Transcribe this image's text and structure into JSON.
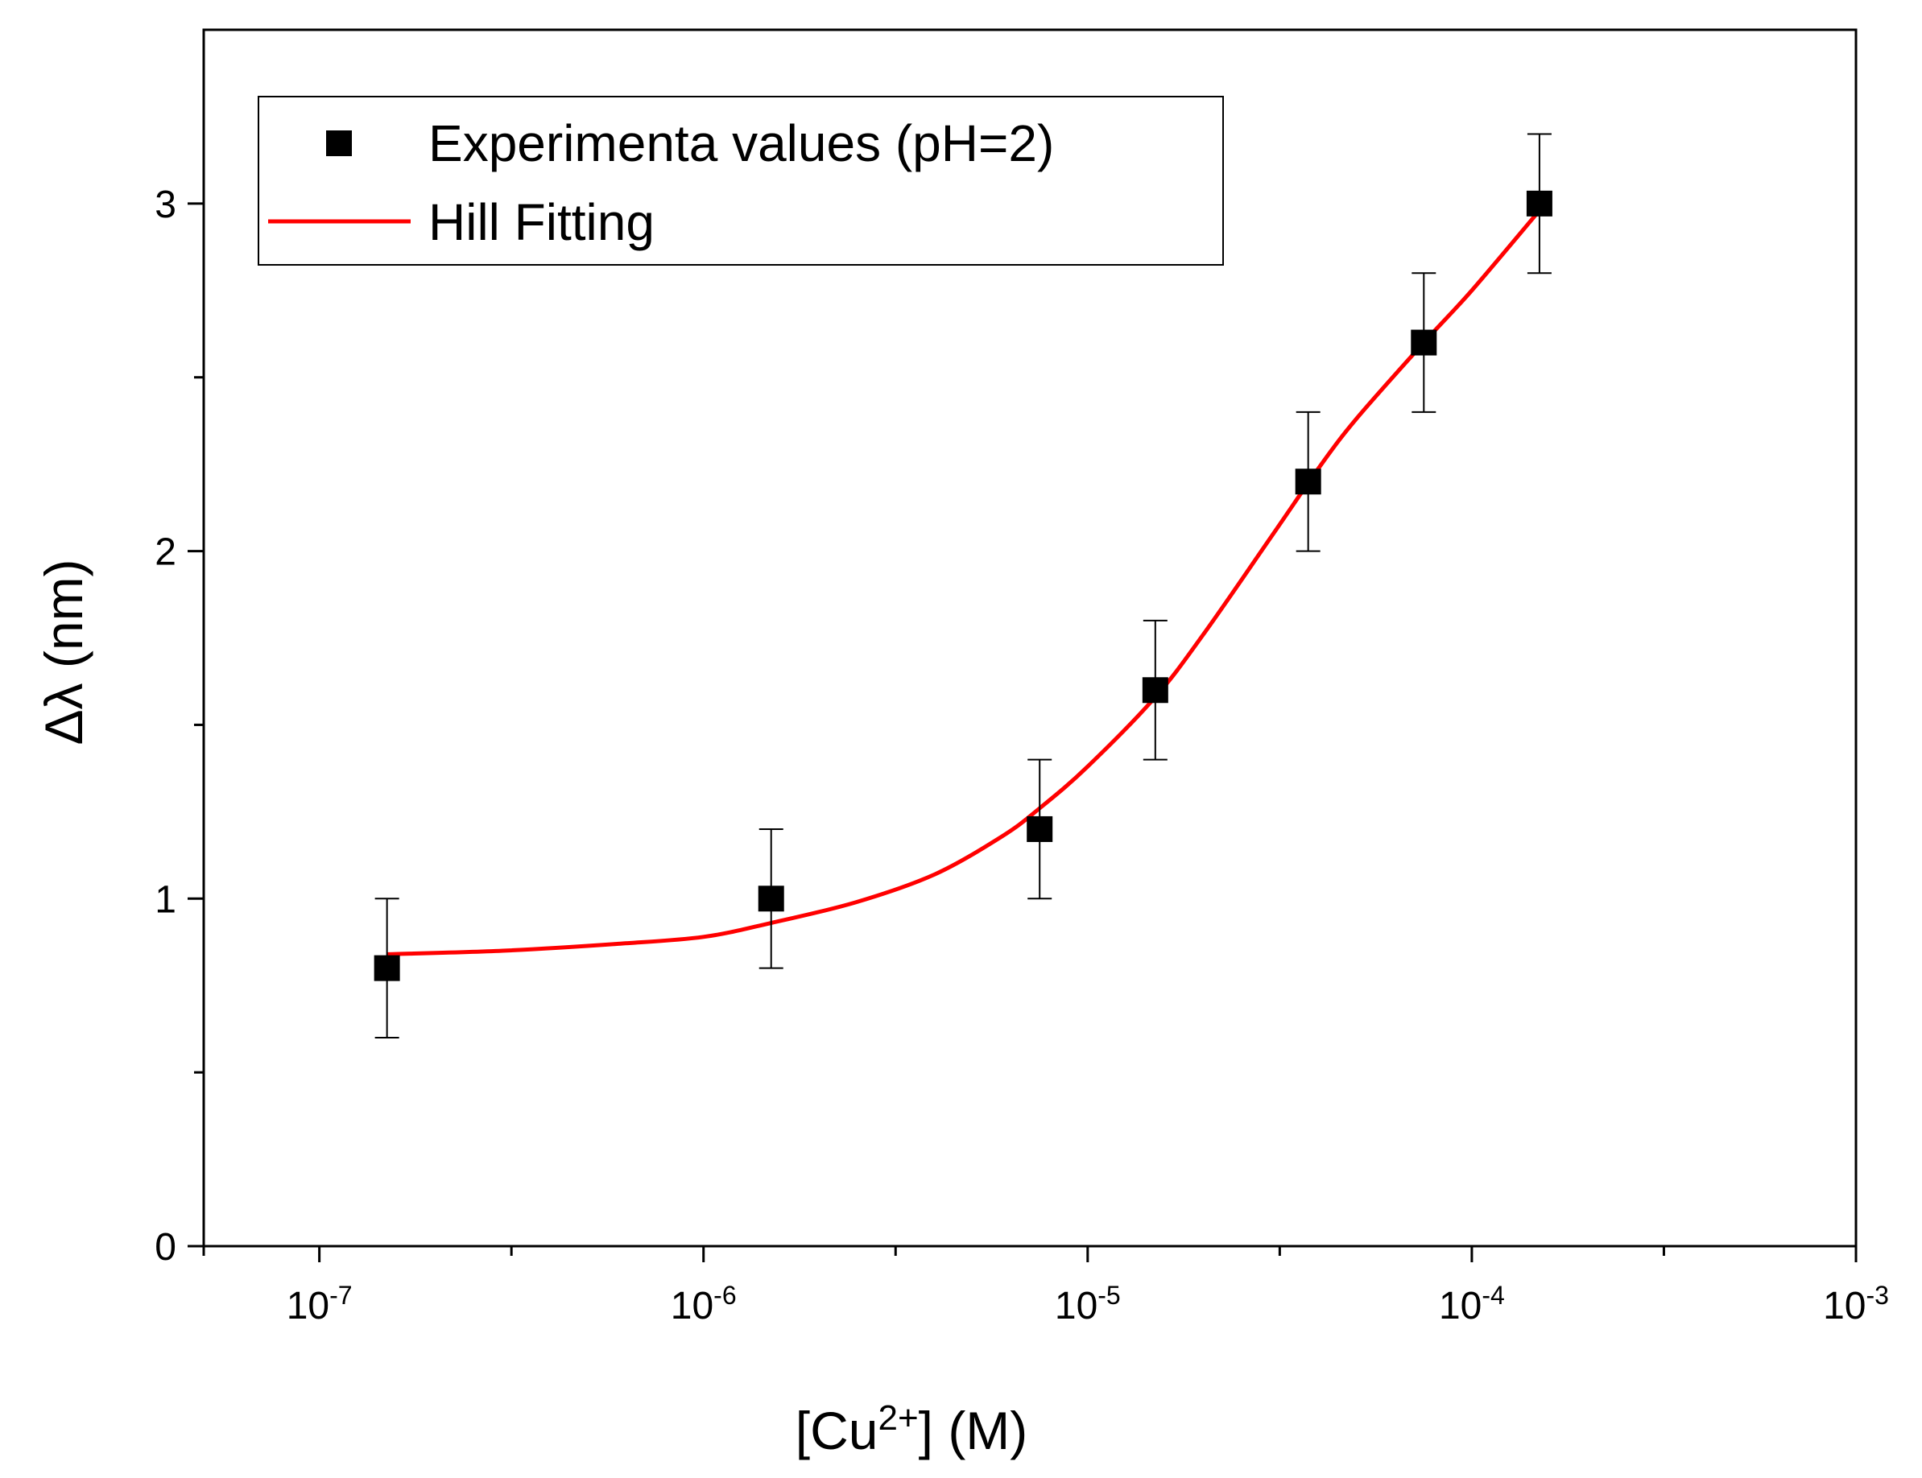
{
  "chart_data": {
    "type": "scatter",
    "title": "",
    "xlabel": {
      "prefix": "[Cu",
      "superscript": "2+",
      "suffix": "] (M)"
    },
    "ylabel": "Δλ (nm)",
    "xscale": "log",
    "xlim": [
      5e-08,
      0.001
    ],
    "ylim": [
      0,
      3.5
    ],
    "grid": false,
    "x_ticks": [
      {
        "base": "10",
        "exp": "-7",
        "value": 1e-07
      },
      {
        "base": "10",
        "exp": "-6",
        "value": 1e-06
      },
      {
        "base": "10",
        "exp": "-5",
        "value": 1e-05
      },
      {
        "base": "10",
        "exp": "-4",
        "value": 0.0001
      },
      {
        "base": "10",
        "exp": "-3",
        "value": 0.001
      }
    ],
    "y_ticks": [
      {
        "label": "0",
        "value": 0
      },
      {
        "label": "1",
        "value": 1
      },
      {
        "label": "2",
        "value": 2
      },
      {
        "label": "3",
        "value": 3
      }
    ],
    "legend_position": "top-left",
    "series": [
      {
        "name": "Experimenta values (pH=2)",
        "kind": "points",
        "marker": "square",
        "color": "#000000",
        "x": [
          1.5e-07,
          1.5e-06,
          7.5e-06,
          1.5e-05,
          3.75e-05,
          7.5e-05,
          0.00015
        ],
        "y": [
          0.8,
          1.0,
          1.2,
          1.6,
          2.2,
          2.6,
          3.0
        ],
        "yerr": [
          0.2,
          0.2,
          0.2,
          0.2,
          0.2,
          0.2,
          0.2
        ]
      },
      {
        "name": "Hill Fitting",
        "kind": "line",
        "color": "#ff0000",
        "x": [
          1.5e-07,
          3e-07,
          6e-07,
          1e-06,
          1.5e-06,
          2.5e-06,
          4e-06,
          6e-06,
          7.5e-06,
          1e-05,
          1.5e-05,
          2e-05,
          3e-05,
          4e-05,
          5e-05,
          7.5e-05,
          0.0001,
          0.00015
        ],
        "y": [
          0.84,
          0.85,
          0.87,
          0.89,
          0.93,
          0.99,
          1.07,
          1.18,
          1.26,
          1.38,
          1.58,
          1.76,
          2.04,
          2.24,
          2.38,
          2.6,
          2.75,
          2.98
        ]
      }
    ]
  }
}
